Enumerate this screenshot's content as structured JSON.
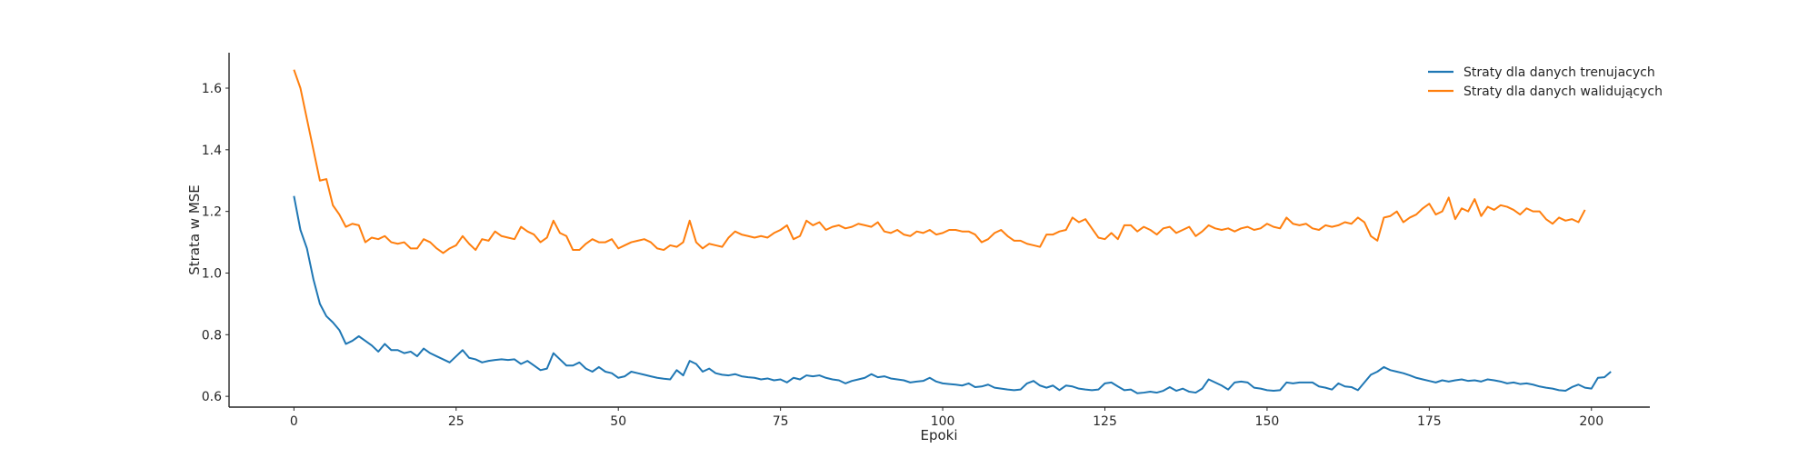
{
  "chart_data": {
    "type": "line",
    "title": "",
    "xlabel": "Epoki",
    "ylabel": "Strata w MSE",
    "xlim": [
      -10,
      209
    ],
    "ylim": [
      0.565,
      1.715
    ],
    "xticks": [
      0,
      25,
      50,
      75,
      100,
      125,
      150,
      175,
      200
    ],
    "yticks": [
      0.6,
      0.8,
      1.0,
      1.2,
      1.4,
      1.6
    ],
    "ytick_labels": [
      "0.6",
      "0.8",
      "1.0",
      "1.2",
      "1.4",
      "1.6"
    ],
    "grid": false,
    "legend_position": "top-right",
    "series": [
      {
        "name": "Straty dla danych trenujacych",
        "color": "#1f77b4",
        "x_start": 0,
        "x_step": 1,
        "values": [
          1.25,
          1.14,
          1.08,
          0.98,
          0.9,
          0.86,
          0.84,
          0.815,
          0.77,
          0.78,
          0.795,
          0.78,
          0.765,
          0.745,
          0.77,
          0.75,
          0.75,
          0.74,
          0.745,
          0.73,
          0.755,
          0.74,
          0.73,
          0.72,
          0.71,
          0.73,
          0.75,
          0.725,
          0.72,
          0.71,
          0.715,
          0.718,
          0.72,
          0.718,
          0.72,
          0.705,
          0.715,
          0.7,
          0.685,
          0.69,
          0.74,
          0.72,
          0.7,
          0.7,
          0.71,
          0.69,
          0.68,
          0.695,
          0.68,
          0.675,
          0.66,
          0.665,
          0.68,
          0.675,
          0.67,
          0.665,
          0.66,
          0.657,
          0.655,
          0.685,
          0.668,
          0.715,
          0.705,
          0.68,
          0.69,
          0.675,
          0.67,
          0.668,
          0.672,
          0.665,
          0.662,
          0.66,
          0.655,
          0.658,
          0.652,
          0.655,
          0.645,
          0.66,
          0.655,
          0.668,
          0.665,
          0.668,
          0.66,
          0.655,
          0.652,
          0.642,
          0.65,
          0.655,
          0.66,
          0.672,
          0.662,
          0.665,
          0.658,
          0.655,
          0.652,
          0.645,
          0.648,
          0.65,
          0.66,
          0.648,
          0.642,
          0.64,
          0.638,
          0.635,
          0.642,
          0.63,
          0.632,
          0.638,
          0.628,
          0.625,
          0.622,
          0.62,
          0.622,
          0.642,
          0.65,
          0.635,
          0.628,
          0.635,
          0.62,
          0.635,
          0.632,
          0.625,
          0.622,
          0.62,
          0.622,
          0.642,
          0.645,
          0.632,
          0.62,
          0.622,
          0.61,
          0.612,
          0.615,
          0.612,
          0.618,
          0.63,
          0.618,
          0.625,
          0.615,
          0.612,
          0.625,
          0.655,
          0.645,
          0.635,
          0.622,
          0.645,
          0.648,
          0.645,
          0.628,
          0.625,
          0.62,
          0.618,
          0.62,
          0.645,
          0.642,
          0.645,
          0.645,
          0.645,
          0.632,
          0.628,
          0.622,
          0.642,
          0.632,
          0.63,
          0.62,
          0.645,
          0.67,
          0.68,
          0.695,
          0.685,
          0.68,
          0.675,
          0.668,
          0.66,
          0.655,
          0.65,
          0.645,
          0.652,
          0.648,
          0.652,
          0.655,
          0.65,
          0.652,
          0.648,
          0.655,
          0.652,
          0.648,
          0.642,
          0.645,
          0.64,
          0.642,
          0.638,
          0.632,
          0.628,
          0.625,
          0.62,
          0.618,
          0.63,
          0.638,
          0.628,
          0.625,
          0.66,
          0.662,
          0.68
        ]
      },
      {
        "name": "Straty dla danych walidujących",
        "color": "#ff7f0e",
        "x_start": 0,
        "x_step": 1,
        "values": [
          1.66,
          1.6,
          1.5,
          1.4,
          1.3,
          1.305,
          1.22,
          1.19,
          1.15,
          1.16,
          1.155,
          1.1,
          1.115,
          1.11,
          1.12,
          1.1,
          1.095,
          1.1,
          1.08,
          1.08,
          1.11,
          1.1,
          1.08,
          1.065,
          1.08,
          1.09,
          1.12,
          1.095,
          1.075,
          1.11,
          1.105,
          1.135,
          1.12,
          1.115,
          1.11,
          1.15,
          1.135,
          1.125,
          1.1,
          1.115,
          1.17,
          1.13,
          1.12,
          1.075,
          1.075,
          1.095,
          1.11,
          1.1,
          1.1,
          1.11,
          1.08,
          1.09,
          1.1,
          1.105,
          1.11,
          1.1,
          1.08,
          1.075,
          1.09,
          1.085,
          1.1,
          1.17,
          1.1,
          1.08,
          1.095,
          1.09,
          1.085,
          1.115,
          1.135,
          1.125,
          1.12,
          1.115,
          1.12,
          1.115,
          1.13,
          1.14,
          1.155,
          1.11,
          1.12,
          1.17,
          1.155,
          1.165,
          1.14,
          1.15,
          1.155,
          1.145,
          1.15,
          1.16,
          1.155,
          1.15,
          1.165,
          1.135,
          1.13,
          1.14,
          1.125,
          1.12,
          1.135,
          1.13,
          1.14,
          1.125,
          1.13,
          1.14,
          1.14,
          1.135,
          1.135,
          1.125,
          1.1,
          1.11,
          1.13,
          1.14,
          1.12,
          1.105,
          1.105,
          1.095,
          1.09,
          1.085,
          1.125,
          1.125,
          1.135,
          1.14,
          1.18,
          1.165,
          1.175,
          1.145,
          1.115,
          1.11,
          1.13,
          1.11,
          1.155,
          1.155,
          1.135,
          1.15,
          1.14,
          1.125,
          1.145,
          1.15,
          1.13,
          1.14,
          1.15,
          1.12,
          1.135,
          1.155,
          1.145,
          1.14,
          1.145,
          1.135,
          1.145,
          1.15,
          1.14,
          1.145,
          1.16,
          1.15,
          1.145,
          1.18,
          1.16,
          1.155,
          1.16,
          1.145,
          1.14,
          1.155,
          1.15,
          1.155,
          1.165,
          1.16,
          1.18,
          1.165,
          1.12,
          1.105,
          1.18,
          1.185,
          1.2,
          1.165,
          1.18,
          1.19,
          1.21,
          1.225,
          1.19,
          1.2,
          1.245,
          1.175,
          1.21,
          1.2,
          1.24,
          1.185,
          1.215,
          1.205,
          1.22,
          1.215,
          1.205,
          1.19,
          1.21,
          1.2,
          1.2,
          1.175,
          1.16,
          1.18,
          1.17,
          1.175,
          1.165,
          1.205
        ]
      }
    ]
  }
}
